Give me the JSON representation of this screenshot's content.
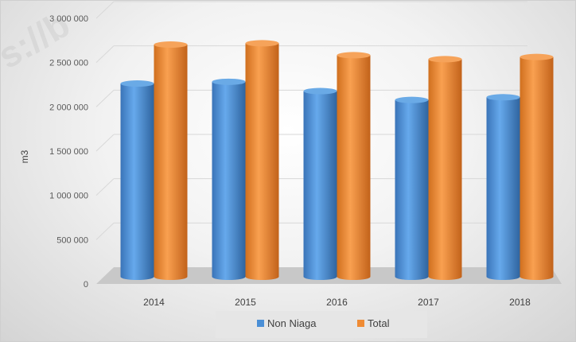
{
  "chart_data": {
    "type": "bar",
    "style": "3d-cylinder",
    "categories": [
      "2014",
      "2015",
      "2016",
      "2017",
      "2018"
    ],
    "series": [
      {
        "name": "Non Niaga",
        "color": "#4a8fd6",
        "values": [
          2290000,
          2310000,
          2205000,
          2105000,
          2135000
        ]
      },
      {
        "name": "Total",
        "color": "#ef8b34",
        "values": [
          2730000,
          2745000,
          2610000,
          2565000,
          2590000
        ]
      }
    ],
    "title": "",
    "xlabel": "",
    "ylabel": "m3",
    "ylim": [
      0,
      3000000
    ],
    "yticks": [
      "0",
      "500 000",
      "1 000 000",
      "1 500 000",
      "2 000 000",
      "2 500 000",
      "3 000 000"
    ],
    "grid": true,
    "legend_position": "bottom"
  }
}
